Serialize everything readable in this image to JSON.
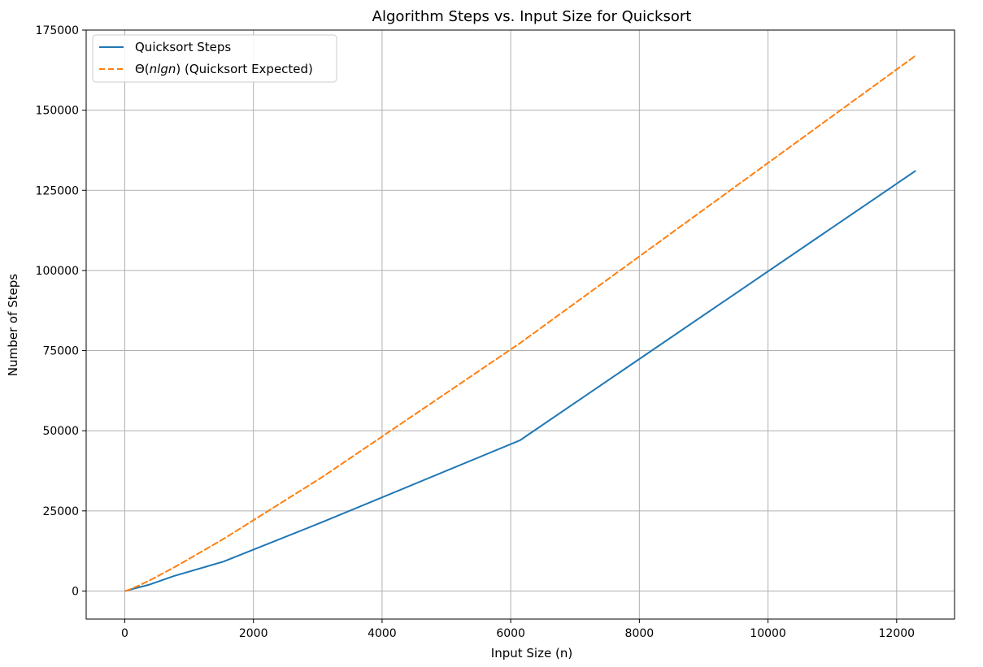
{
  "chart_data": {
    "type": "line",
    "title": "Algorithm Steps vs. Input Size for Quicksort",
    "xlabel": "Input Size (n)",
    "ylabel": "Number of Steps",
    "xlim": [
      -600,
      12900
    ],
    "ylim": [
      -8750,
      175000
    ],
    "xticks": [
      0,
      2000,
      4000,
      6000,
      8000,
      10000,
      12000
    ],
    "yticks": [
      0,
      25000,
      50000,
      75000,
      100000,
      125000,
      150000,
      175000
    ],
    "grid": true,
    "legend_position": "top-left",
    "series": [
      {
        "name": "Quicksort Steps",
        "color": "#1f77b4",
        "style": "solid",
        "x": [
          10,
          48,
          96,
          192,
          384,
          768,
          1536,
          3072,
          6144,
          12288
        ],
        "y": [
          30,
          200,
          500,
          1000,
          2000,
          4700,
          9200,
          21500,
          47000,
          131000
        ]
      },
      {
        "name_prefix": "Θ(",
        "name_math": "nlgn",
        "name_suffix": ") (Quicksort Expected)",
        "color": "#ff7f0e",
        "style": "dashed",
        "x": [
          10,
          48,
          96,
          192,
          384,
          768,
          1536,
          3072,
          6144,
          12288
        ],
        "y": [
          33,
          268,
          632,
          1456,
          3297,
          7361,
          16256,
          35584,
          77312,
          166912
        ]
      }
    ]
  }
}
